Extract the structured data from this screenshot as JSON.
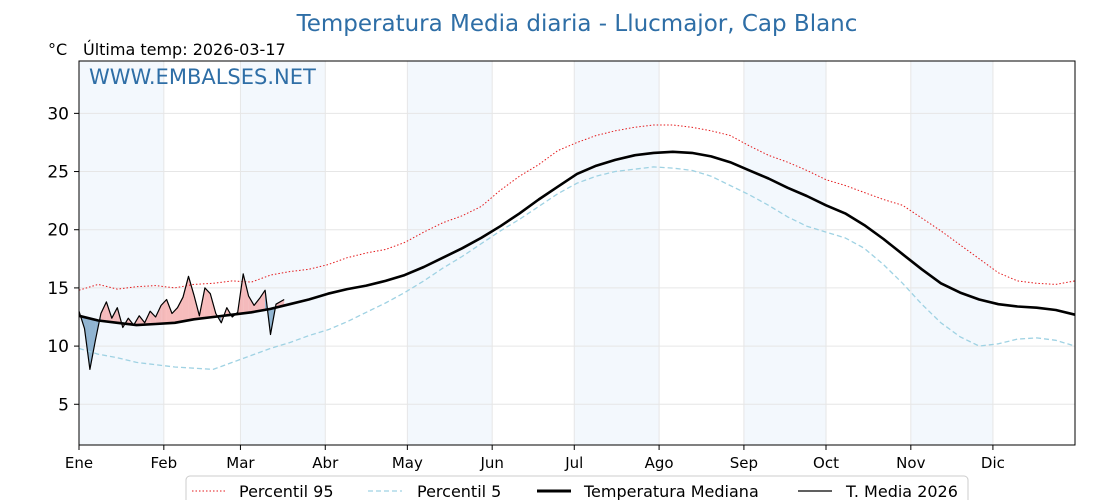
{
  "chart_data": {
    "type": "line",
    "title": "Temperatura Media diaria - Llucmajor, Cap Blanc",
    "unit": "°C",
    "last_reading_label": "Última temp: 2026-03-17",
    "watermark": "WWW.EMBALSES.NET",
    "ylim": [
      1.5,
      34.5
    ],
    "yticks": [
      5,
      10,
      15,
      20,
      25,
      30
    ],
    "months": [
      "Ene",
      "Feb",
      "Mar",
      "Abr",
      "May",
      "Jun",
      "Jul",
      "Ago",
      "Sep",
      "Oct",
      "Nov",
      "Dic"
    ],
    "month_start_day": [
      1,
      32,
      60,
      91,
      121,
      152,
      182,
      213,
      244,
      274,
      305,
      335
    ],
    "days_in_year": 365,
    "grid": true,
    "legend_position": "bottom",
    "series": [
      {
        "name": "Percentil 95",
        "color": "#e41a1c",
        "style": "dotted",
        "x": [
          1,
          8,
          15,
          22,
          29,
          36,
          43,
          50,
          57,
          64,
          71,
          78,
          85,
          92,
          99,
          106,
          113,
          120,
          127,
          134,
          141,
          148,
          155,
          162,
          169,
          176,
          183,
          190,
          197,
          204,
          211,
          218,
          225,
          232,
          239,
          246,
          253,
          260,
          267,
          274,
          281,
          288,
          295,
          302,
          309,
          316,
          323,
          330,
          337,
          344,
          351,
          358,
          365
        ],
        "y": [
          14.8,
          15.3,
          14.9,
          15.1,
          15.2,
          15.0,
          15.3,
          15.4,
          15.6,
          15.5,
          16.1,
          16.4,
          16.6,
          17.0,
          17.6,
          18.0,
          18.3,
          18.9,
          19.8,
          20.6,
          21.2,
          22.0,
          23.4,
          24.6,
          25.6,
          26.8,
          27.5,
          28.1,
          28.5,
          28.8,
          29.0,
          29.0,
          28.8,
          28.5,
          28.1,
          27.2,
          26.4,
          25.8,
          25.1,
          24.3,
          23.8,
          23.2,
          22.6,
          22.1,
          21.0,
          19.9,
          18.7,
          17.5,
          16.3,
          15.6,
          15.4,
          15.3,
          15.6
        ]
      },
      {
        "name": "Percentil 5",
        "color": "#9fd2e3",
        "style": "dashed",
        "x": [
          1,
          8,
          15,
          22,
          29,
          36,
          43,
          50,
          57,
          64,
          71,
          78,
          85,
          92,
          99,
          106,
          113,
          120,
          127,
          134,
          141,
          148,
          155,
          162,
          169,
          176,
          183,
          190,
          197,
          204,
          211,
          218,
          225,
          232,
          239,
          246,
          253,
          260,
          267,
          274,
          281,
          288,
          295,
          302,
          309,
          316,
          323,
          330,
          337,
          344,
          351,
          358,
          365
        ],
        "y": [
          9.8,
          9.3,
          9.0,
          8.6,
          8.4,
          8.2,
          8.1,
          8.0,
          8.6,
          9.2,
          9.8,
          10.3,
          10.9,
          11.4,
          12.1,
          12.9,
          13.7,
          14.6,
          15.6,
          16.7,
          17.7,
          18.8,
          19.9,
          20.9,
          22.0,
          23.1,
          24.0,
          24.6,
          25.0,
          25.2,
          25.4,
          25.3,
          25.1,
          24.6,
          23.8,
          23.0,
          22.1,
          21.1,
          20.3,
          19.8,
          19.3,
          18.4,
          17.0,
          15.4,
          13.6,
          12.0,
          10.8,
          10.0,
          10.2,
          10.6,
          10.7,
          10.5,
          10.0
        ]
      },
      {
        "name": "Temperatura Mediana",
        "color": "#000000",
        "style": "thick",
        "x": [
          1,
          8,
          15,
          22,
          29,
          36,
          43,
          50,
          57,
          64,
          71,
          78,
          85,
          92,
          99,
          106,
          113,
          120,
          127,
          134,
          141,
          148,
          155,
          162,
          169,
          176,
          183,
          190,
          197,
          204,
          211,
          218,
          225,
          232,
          239,
          246,
          253,
          260,
          267,
          274,
          281,
          288,
          295,
          302,
          309,
          316,
          323,
          330,
          337,
          344,
          351,
          358,
          365
        ],
        "y": [
          12.6,
          12.2,
          12.0,
          11.8,
          11.9,
          12.0,
          12.3,
          12.5,
          12.7,
          12.9,
          13.2,
          13.6,
          14.0,
          14.5,
          14.9,
          15.2,
          15.6,
          16.1,
          16.8,
          17.6,
          18.4,
          19.3,
          20.3,
          21.4,
          22.6,
          23.7,
          24.8,
          25.5,
          26.0,
          26.4,
          26.6,
          26.7,
          26.6,
          26.3,
          25.8,
          25.1,
          24.4,
          23.6,
          22.9,
          22.1,
          21.4,
          20.4,
          19.2,
          17.9,
          16.6,
          15.4,
          14.6,
          14.0,
          13.6,
          13.4,
          13.3,
          13.1,
          12.7
        ]
      },
      {
        "name": "T. Media 2026",
        "color": "#000000",
        "style": "thin",
        "x": [
          1,
          3,
          5,
          7,
          9,
          11,
          13,
          15,
          17,
          19,
          21,
          23,
          25,
          27,
          29,
          31,
          33,
          35,
          37,
          39,
          41,
          43,
          45,
          47,
          49,
          51,
          53,
          55,
          57,
          59,
          61,
          63,
          65,
          67,
          69,
          71,
          73,
          76
        ],
        "y": [
          13.0,
          11.5,
          8.0,
          10.5,
          12.8,
          13.8,
          12.4,
          13.3,
          11.6,
          12.4,
          11.8,
          12.6,
          12.0,
          13.0,
          12.5,
          13.5,
          14.0,
          12.8,
          13.3,
          14.2,
          16.0,
          14.4,
          12.6,
          15.0,
          14.5,
          12.8,
          12.0,
          13.3,
          12.5,
          12.9,
          16.2,
          14.3,
          13.5,
          14.1,
          14.8,
          11.0,
          13.6,
          14.0
        ]
      }
    ]
  },
  "legend": {
    "items": [
      "Percentil 95",
      "Percentil 5",
      "Temperatura Mediana",
      "T. Media 2026"
    ]
  }
}
